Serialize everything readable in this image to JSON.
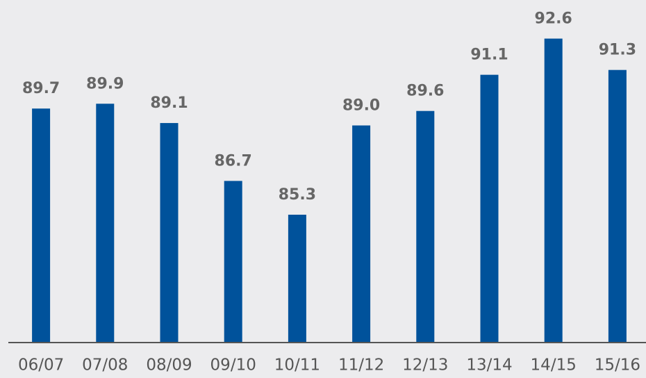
{
  "chart_data": {
    "type": "bar",
    "categories": [
      "06/07",
      "07/08",
      "08/09",
      "09/10",
      "10/11",
      "11/12",
      "12/13",
      "13/14",
      "14/15",
      "15/16"
    ],
    "values": [
      89.7,
      89.9,
      89.1,
      86.7,
      85.3,
      89.0,
      89.6,
      91.1,
      92.6,
      91.3
    ],
    "value_labels": [
      "89.7",
      "89.9",
      "89.1",
      "86.7",
      "85.3",
      "89.0",
      "89.6",
      "91.1",
      "92.6",
      "91.3"
    ],
    "color": "#00529b",
    "ylim": [
      80,
      94.2
    ]
  }
}
